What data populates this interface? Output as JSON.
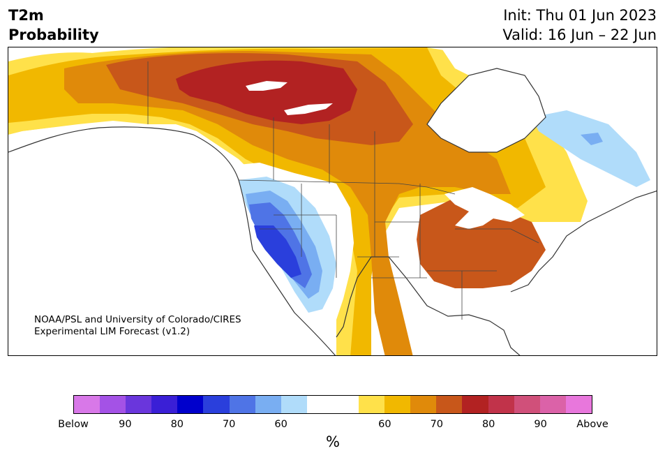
{
  "header": {
    "variable": "T2m",
    "subtitle": "Probability",
    "init": "Init: Thu 01 Jun 2023",
    "valid": "Valid: 16 Jun – 22 Jun"
  },
  "credit": {
    "line1": "NOAA/PSL and University of Colorado/CIRES",
    "line2": "Experimental LIM Forecast (v1.2)"
  },
  "colorbar": {
    "colors": [
      "#d878e8",
      "#a452e6",
      "#6a36dc",
      "#3a1fd6",
      "#0000cc",
      "#2a3fdc",
      "#4f74e6",
      "#79aef2",
      "#b0dcfa",
      "#ffffff",
      "#ffffff",
      "#ffe14a",
      "#f1b800",
      "#e08a0a",
      "#c8571a",
      "#b22222",
      "#c1334a",
      "#d0507a",
      "#db62a8",
      "#e877dc"
    ],
    "labels": [
      "Below",
      "90",
      "80",
      "70",
      "60",
      "60",
      "70",
      "80",
      "90",
      "Above"
    ],
    "unit": "%"
  },
  "map": {
    "below_colors": {
      "b60": "#b0dcfa",
      "b70": "#79aef2",
      "b80": "#4f74e6",
      "b90": "#2a3fdc"
    },
    "above_colors": {
      "a50": "#ffe14a",
      "a60": "#f1b800",
      "a70": "#e08a0a",
      "a80": "#c8571a",
      "a90": "#b22222",
      "a95": "#c1334a"
    }
  }
}
